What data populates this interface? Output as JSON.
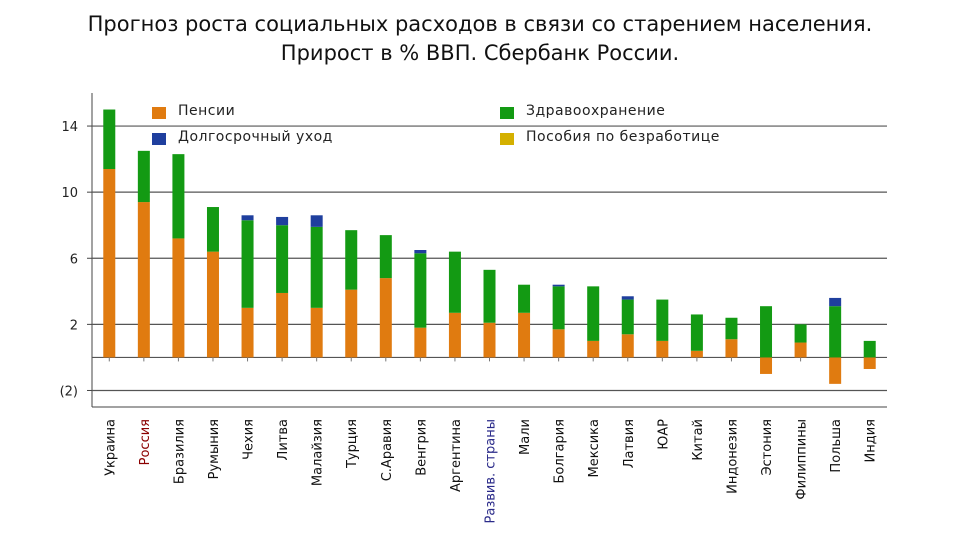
{
  "title": {
    "line1": "Прогноз роста социальных расходов в связи со старением населения.",
    "line2": "Прирост в % ВВП. Сбербанк России."
  },
  "colors": {
    "pensions": "#e07b10",
    "healthcare": "#139a13",
    "longterm": "#1f3f9e",
    "unemployment": "#d4b000",
    "grid": "#555555",
    "highlight_label": "#8b0000",
    "developed_label": "#2b2b8a"
  },
  "legend": [
    {
      "key": "pensions",
      "label": "Пенсии"
    },
    {
      "key": "longterm",
      "label": "Долгосрочный уход"
    },
    {
      "key": "healthcare",
      "label": "Здравоохранение"
    },
    {
      "key": "unemployment",
      "label": "Пособия по безработице"
    }
  ],
  "chart_data": {
    "type": "bar",
    "stacked": true,
    "ylim": [
      -3,
      16
    ],
    "yticks": [
      14,
      10,
      6,
      2,
      -2
    ],
    "ytick_labels": [
      "14",
      "10",
      "6",
      "2",
      "(2)"
    ],
    "categories": [
      "Украина",
      "Россия",
      "Бразилия",
      "Румыния",
      "Чехия",
      "Литва",
      "Малайзия",
      "Турция",
      "С.Аравия",
      "Венгрия",
      "Аргентина",
      "Развив. страны",
      "Мали",
      "Болгария",
      "Мексика",
      "Латвия",
      "ЮАР",
      "Китай",
      "Индонезия",
      "Эстония",
      "Филиппины",
      "Польша",
      "Индия"
    ],
    "series": [
      {
        "name": "Пенсии",
        "key": "pensions",
        "values": [
          11.4,
          9.4,
          7.2,
          6.4,
          3.0,
          3.9,
          3.0,
          4.1,
          4.8,
          1.8,
          2.7,
          2.1,
          2.7,
          1.7,
          1.0,
          1.4,
          1.0,
          0.4,
          1.1,
          -1.0,
          0.9,
          -1.6,
          -0.7
        ]
      },
      {
        "name": "Здравоохранение",
        "key": "healthcare",
        "values": [
          3.6,
          3.1,
          5.1,
          2.7,
          5.3,
          4.1,
          4.9,
          3.6,
          2.6,
          4.5,
          3.7,
          3.2,
          1.7,
          2.6,
          3.3,
          2.1,
          2.5,
          2.2,
          1.3,
          3.1,
          1.1,
          3.1,
          1.0
        ]
      },
      {
        "name": "Долгосрочный уход",
        "key": "longterm",
        "values": [
          0,
          0,
          0,
          0,
          0.3,
          0.5,
          0.7,
          0,
          0,
          0.2,
          0,
          0,
          0,
          0.1,
          0,
          0.2,
          0,
          0,
          0,
          0,
          0,
          0.5,
          0
        ]
      },
      {
        "name": "Пособия по безработице",
        "key": "unemployment",
        "values": [
          0,
          0,
          0,
          0,
          0,
          0,
          0,
          0,
          0,
          0,
          0,
          0,
          0,
          0,
          0,
          0,
          0,
          0,
          0,
          0,
          0,
          0,
          0
        ]
      }
    ],
    "highlight_category": "Россия",
    "developed_category": "Развив. страны",
    "grid": true
  }
}
